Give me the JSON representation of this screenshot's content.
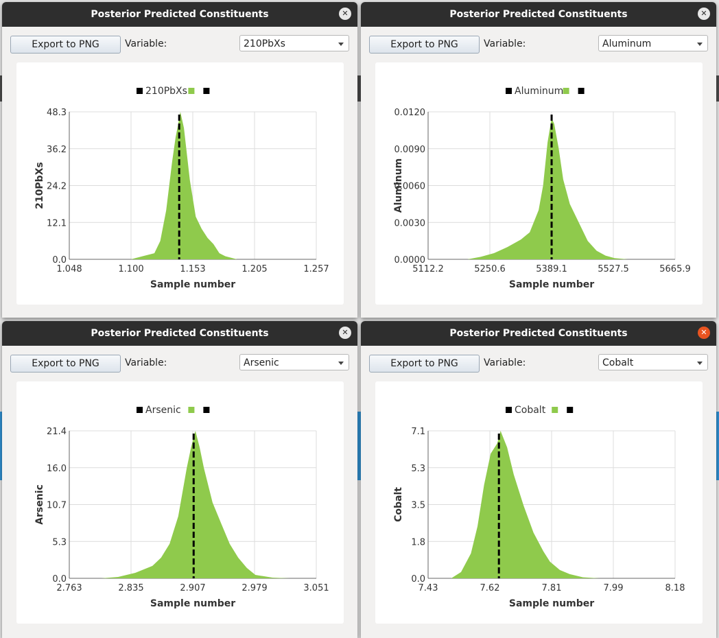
{
  "colors": {
    "titlebar": "#2e2e2e",
    "hist_fill": "#8fca4c",
    "mean_line": "#000000",
    "close_active": "#e95420"
  },
  "windows": [
    {
      "title": "Posterior Predicted Constituents",
      "export_label": "Export to PNG",
      "variable_label": "Variable:",
      "variable_value": "210PbXs",
      "close_active": false,
      "chart_data": {
        "type": "area",
        "title": "",
        "legend": [
          "210PbXs"
        ],
        "xlabel": "Sample number",
        "ylabel": "210PbXs",
        "xticks": [
          "1.048",
          "1.100",
          "1.153",
          "1.205",
          "1.257"
        ],
        "yticks": [
          "0.0",
          "12.1",
          "24.2",
          "36.2",
          "48.3"
        ],
        "xlim": [
          1.048,
          1.257
        ],
        "ylim": [
          0,
          48.3
        ],
        "mean": 1.141,
        "x": [
          1.048,
          1.06,
          1.08,
          1.1,
          1.11,
          1.12,
          1.125,
          1.13,
          1.135,
          1.138,
          1.14,
          1.142,
          1.145,
          1.15,
          1.155,
          1.16,
          1.165,
          1.17,
          1.175,
          1.18,
          1.19,
          1.2,
          1.22,
          1.24,
          1.257
        ],
        "y": [
          0,
          0,
          0,
          0,
          1,
          2,
          6,
          16,
          32,
          40,
          44,
          48.3,
          43,
          26,
          14,
          10,
          7,
          5,
          2,
          1,
          0,
          0,
          0,
          0,
          0
        ]
      }
    },
    {
      "title": "Posterior Predicted Constituents",
      "export_label": "Export to PNG",
      "variable_label": "Variable:",
      "variable_value": "Aluminum",
      "close_active": false,
      "chart_data": {
        "type": "area",
        "title": "",
        "legend": [
          "Aluminum"
        ],
        "xlabel": "Sample number",
        "ylabel": "Aluminum",
        "xticks": [
          "5112.2",
          "5250.6",
          "5389.1",
          "5527.5",
          "5665.9"
        ],
        "yticks": [
          "0.0000",
          "0.0030",
          "0.0060",
          "0.0090",
          "0.0120"
        ],
        "xlim": [
          5112.2,
          5665.9
        ],
        "ylim": [
          0,
          0.012
        ],
        "mean": 5389.1,
        "x": [
          5112.2,
          5200,
          5230,
          5260,
          5290,
          5320,
          5340,
          5360,
          5370,
          5380,
          5389,
          5395,
          5405,
          5415,
          5430,
          5450,
          5470,
          5490,
          5510,
          5530,
          5560,
          5600,
          5665.9
        ],
        "y": [
          0,
          0,
          0.0002,
          0.0005,
          0.001,
          0.0016,
          0.0022,
          0.004,
          0.006,
          0.0095,
          0.0115,
          0.011,
          0.009,
          0.0065,
          0.0045,
          0.003,
          0.0015,
          0.0007,
          0.0003,
          0.0001,
          0,
          0,
          0
        ]
      }
    },
    {
      "title": "Posterior Predicted Constituents",
      "export_label": "Export to PNG",
      "variable_label": "Variable:",
      "variable_value": "Arsenic",
      "close_active": false,
      "chart_data": {
        "type": "area",
        "title": "",
        "legend": [
          "Arsenic"
        ],
        "xlabel": "Sample number",
        "ylabel": "Arsenic",
        "xticks": [
          "2.763",
          "2.835",
          "2.907",
          "2.979",
          "3.051"
        ],
        "yticks": [
          "0.0",
          "5.3",
          "10.7",
          "16.0",
          "21.4"
        ],
        "xlim": [
          2.763,
          3.051
        ],
        "ylim": [
          0,
          21.4
        ],
        "mean": 2.908,
        "x": [
          2.763,
          2.8,
          2.82,
          2.84,
          2.86,
          2.87,
          2.88,
          2.89,
          2.9,
          2.905,
          2.91,
          2.915,
          2.92,
          2.93,
          2.94,
          2.95,
          2.96,
          2.97,
          2.98,
          3.0,
          3.02,
          3.051
        ],
        "y": [
          0,
          0,
          0.2,
          0.8,
          1.8,
          3,
          5,
          9,
          16,
          19,
          21.4,
          19,
          16,
          11,
          8,
          5,
          3,
          1.5,
          0.5,
          0.1,
          0,
          0
        ]
      }
    },
    {
      "title": "Posterior Predicted Constituents",
      "export_label": "Export to PNG",
      "variable_label": "Variable:",
      "variable_value": "Cobalt",
      "close_active": true,
      "chart_data": {
        "type": "area",
        "title": "",
        "legend": [
          "Cobalt"
        ],
        "xlabel": "Sample number",
        "ylabel": "Cobalt",
        "xticks": [
          "7.43",
          "7.62",
          "7.81",
          "7.99",
          "8.18"
        ],
        "yticks": [
          "0.0",
          "1.8",
          "3.5",
          "5.3",
          "7.1"
        ],
        "xlim": [
          7.43,
          8.18
        ],
        "ylim": [
          0,
          7.1
        ],
        "mean": 7.645,
        "x": [
          7.43,
          7.5,
          7.53,
          7.56,
          7.58,
          7.6,
          7.62,
          7.64,
          7.65,
          7.67,
          7.69,
          7.72,
          7.75,
          7.78,
          7.8,
          7.83,
          7.86,
          7.9,
          7.95,
          8.0,
          8.18
        ],
        "y": [
          0,
          0,
          0.3,
          1.2,
          2.5,
          4.5,
          6,
          6.5,
          7.1,
          6.3,
          5,
          3.5,
          2.2,
          1.3,
          0.8,
          0.4,
          0.2,
          0.05,
          0,
          0,
          0
        ]
      }
    }
  ]
}
